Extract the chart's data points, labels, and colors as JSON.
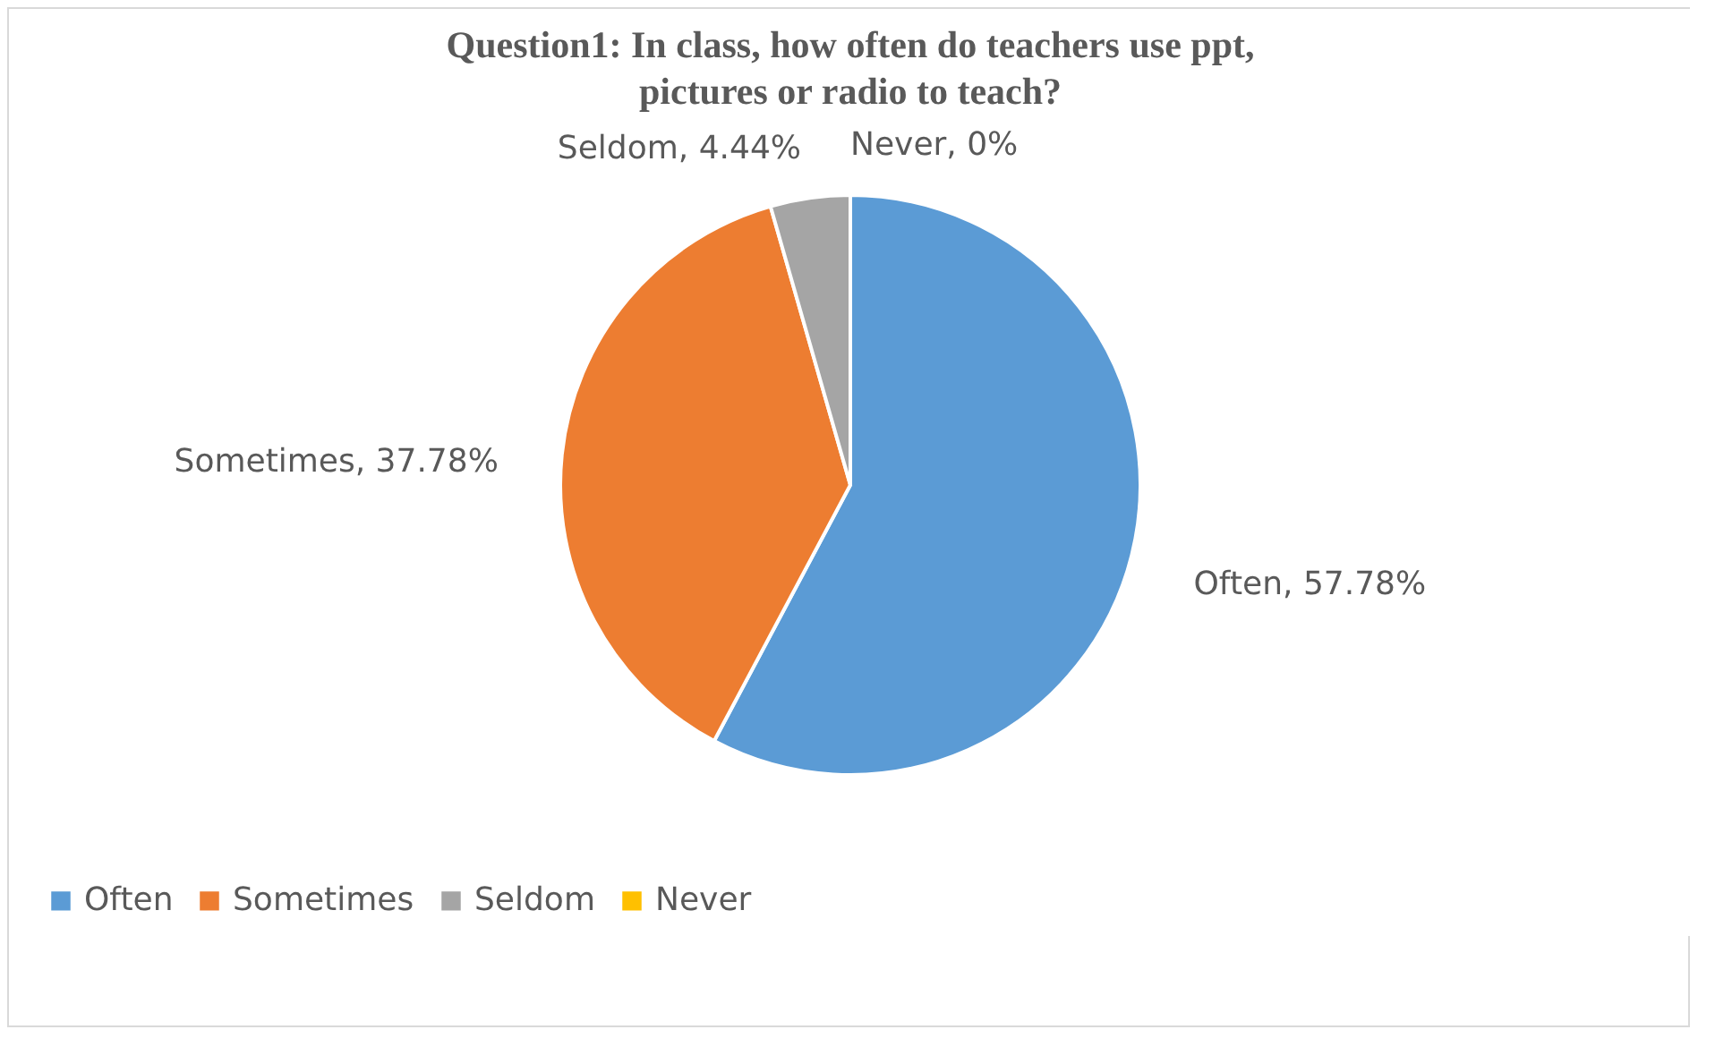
{
  "chart_data": {
    "type": "pie",
    "title": "Question1: In class, how often do teachers use ppt, pictures or radio to teach?",
    "categories": [
      "Often",
      "Sometimes",
      "Seldom",
      "Never"
    ],
    "values": [
      57.78,
      37.78,
      4.44,
      0
    ],
    "colors": [
      "#5b9bd5",
      "#ed7d31",
      "#a5a5a5",
      "#ffc000"
    ],
    "value_labels": [
      "Often, 57.78%",
      "Sometimes, 37.78%",
      "Seldom, 4.44%",
      "Never, 0%"
    ],
    "legend": "bottom"
  }
}
